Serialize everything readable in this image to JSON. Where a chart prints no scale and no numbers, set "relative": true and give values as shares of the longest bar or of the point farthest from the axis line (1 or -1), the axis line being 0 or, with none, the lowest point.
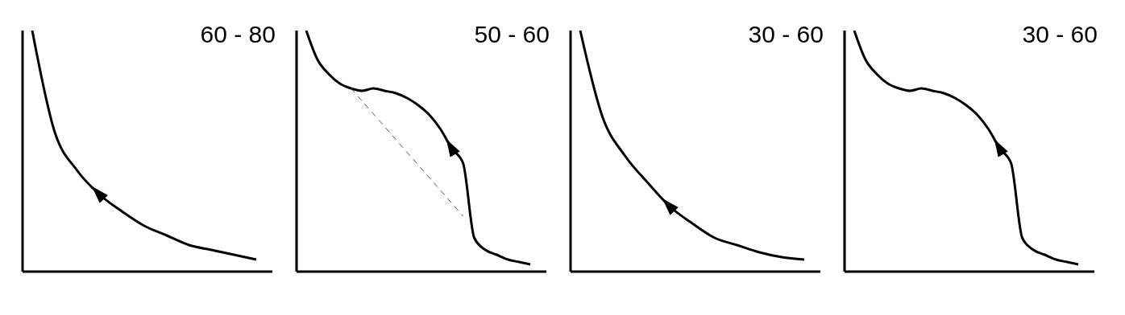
{
  "chart_data": [
    {
      "type": "line",
      "title": "60 - 80",
      "relative": true,
      "marker": "none",
      "categories": [
        null,
        null,
        null,
        null,
        null,
        null,
        null,
        null,
        null,
        null,
        null
      ],
      "series": [
        {
          "color": "#000000",
          "values": [
            1,
            0.58,
            0.42,
            0.32,
            0.25,
            0.19,
            0.15,
            0.11,
            0.09,
            0.07,
            0.05
          ]
        }
      ]
    },
    {
      "type": "line",
      "title": "50 - 60",
      "relative": true,
      "marker": "none",
      "categories": [
        null,
        null,
        null,
        null,
        null,
        null,
        null,
        null,
        null,
        null,
        null,
        null,
        null,
        null,
        null,
        null,
        null,
        null,
        null,
        null,
        null
      ],
      "series": [
        {
          "color": "#000000",
          "values": [
            1,
            0.88,
            0.82,
            0.78,
            0.76,
            0.75,
            0.76,
            0.75,
            0.74,
            0.72,
            0.69,
            0.65,
            0.59,
            0.51,
            0.45,
            0.14,
            0.09,
            0.07,
            0.05,
            0.04,
            0.03
          ]
        },
        {
          "color": "#555555",
          "line_style": "dashed",
          "values": [
            null,
            null,
            null,
            null,
            0.76,
            null,
            null,
            null,
            null,
            null,
            null,
            null,
            null,
            null,
            0.23,
            null,
            null,
            null,
            null,
            null,
            null
          ]
        }
      ]
    },
    {
      "type": "line",
      "title": "30 - 60",
      "relative": true,
      "marker": "none",
      "categories": [
        null,
        null,
        null,
        null,
        null,
        null,
        null,
        null,
        null,
        null,
        null
      ],
      "series": [
        {
          "color": "#000000",
          "values": [
            1,
            0.64,
            0.48,
            0.37,
            0.27,
            0.2,
            0.14,
            0.11,
            0.08,
            0.06,
            0.05
          ]
        }
      ]
    },
    {
      "type": "line",
      "title": "30 - 60",
      "relative": true,
      "marker": "none",
      "categories": [
        null,
        null,
        null,
        null,
        null,
        null,
        null,
        null,
        null,
        null,
        null,
        null,
        null,
        null,
        null,
        null,
        null,
        null,
        null,
        null,
        null
      ],
      "series": [
        {
          "color": "#000000",
          "values": [
            1,
            0.88,
            0.82,
            0.78,
            0.76,
            0.75,
            0.76,
            0.75,
            0.74,
            0.72,
            0.69,
            0.65,
            0.59,
            0.51,
            0.45,
            0.14,
            0.09,
            0.07,
            0.05,
            0.04,
            0.03
          ]
        }
      ]
    }
  ]
}
